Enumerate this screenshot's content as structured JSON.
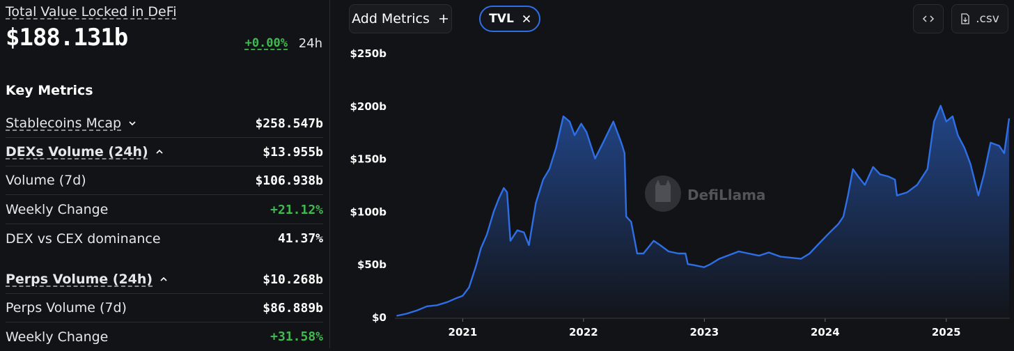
{
  "left_panel": {
    "tvl_title": "Total Value Locked in DeFi",
    "tvl_value": "$188.131b",
    "tvl_change": "+0.00%",
    "tvl_period": "24h",
    "section_title": "Key Metrics",
    "metrics": [
      {
        "label": "Stablecoins Mcap",
        "value": "$258.547b"
      },
      {
        "label": "DEXs Volume (24h)",
        "value": "$13.955b"
      },
      {
        "label": "Volume (7d)",
        "value": "$106.938b"
      },
      {
        "label": "Weekly Change",
        "value": "+21.12%"
      },
      {
        "label": "DEX vs CEX dominance",
        "value": "41.37%"
      },
      {
        "label": "Perps Volume (24h)",
        "value": "$10.268b"
      },
      {
        "label": "Perps Volume (7d)",
        "value": "$86.889b"
      },
      {
        "label": "Weekly Change",
        "value": "+31.58%"
      }
    ]
  },
  "toolbar": {
    "add_metrics_label": "Add Metrics",
    "tvl_chip_label": "TVL",
    "csv_label": ".csv"
  },
  "watermark": "DefiLlama",
  "colors": {
    "background": "#121316",
    "line": "#2f6fe6",
    "positive": "#3fb950"
  },
  "icons": [
    "plus-icon",
    "close-icon",
    "chevron-down-icon",
    "chevron-up-icon",
    "code-icon",
    "download-file-icon",
    "llama-logo-icon"
  ],
  "chart_data": {
    "type": "area",
    "series": [
      {
        "name": "TVL"
      }
    ],
    "y_ticks": [
      "$0",
      "$50b",
      "$100b",
      "$150b",
      "$200b",
      "$250b"
    ],
    "x_ticks": [
      "2021",
      "2022",
      "2023",
      "2024",
      "2025"
    ],
    "ylim": [
      0,
      250
    ],
    "y_unit": "$b",
    "grid": false,
    "points": [
      [
        "2020-06-15",
        1
      ],
      [
        "2020-07-15",
        3
      ],
      [
        "2020-08-15",
        6
      ],
      [
        "2020-09-15",
        10
      ],
      [
        "2020-10-15",
        11
      ],
      [
        "2020-11-15",
        14
      ],
      [
        "2020-12-15",
        18
      ],
      [
        "2021-01-01",
        20
      ],
      [
        "2021-01-20",
        28
      ],
      [
        "2021-02-10",
        48
      ],
      [
        "2021-02-25",
        65
      ],
      [
        "2021-03-15",
        78
      ],
      [
        "2021-04-05",
        100
      ],
      [
        "2021-04-20",
        112
      ],
      [
        "2021-05-05",
        122
      ],
      [
        "2021-05-15",
        118
      ],
      [
        "2021-05-25",
        72
      ],
      [
        "2021-06-15",
        82
      ],
      [
        "2021-07-05",
        80
      ],
      [
        "2021-07-20",
        68
      ],
      [
        "2021-08-10",
        108
      ],
      [
        "2021-09-01",
        130
      ],
      [
        "2021-09-20",
        140
      ],
      [
        "2021-10-10",
        160
      ],
      [
        "2021-11-01",
        190
      ],
      [
        "2021-11-20",
        185
      ],
      [
        "2021-12-05",
        172
      ],
      [
        "2021-12-25",
        183
      ],
      [
        "2022-01-10",
        175
      ],
      [
        "2022-02-05",
        150
      ],
      [
        "2022-03-01",
        165
      ],
      [
        "2022-04-01",
        185
      ],
      [
        "2022-04-25",
        165
      ],
      [
        "2022-05-05",
        155
      ],
      [
        "2022-05-10",
        95
      ],
      [
        "2022-05-25",
        90
      ],
      [
        "2022-06-12",
        60
      ],
      [
        "2022-07-01",
        60
      ],
      [
        "2022-08-01",
        72
      ],
      [
        "2022-08-20",
        68
      ],
      [
        "2022-09-15",
        62
      ],
      [
        "2022-10-15",
        60
      ],
      [
        "2022-11-05",
        60
      ],
      [
        "2022-11-12",
        50
      ],
      [
        "2022-12-01",
        49
      ],
      [
        "2022-12-31",
        47
      ],
      [
        "2023-01-20",
        50
      ],
      [
        "2023-02-15",
        55
      ],
      [
        "2023-04-15",
        62
      ],
      [
        "2023-05-15",
        60
      ],
      [
        "2023-06-15",
        58
      ],
      [
        "2023-07-15",
        61
      ],
      [
        "2023-08-20",
        57
      ],
      [
        "2023-09-20",
        56
      ],
      [
        "2023-10-20",
        55
      ],
      [
        "2023-11-15",
        60
      ],
      [
        "2023-12-15",
        70
      ],
      [
        "2024-01-15",
        80
      ],
      [
        "2024-02-10",
        88
      ],
      [
        "2024-02-25",
        95
      ],
      [
        "2024-03-10",
        115
      ],
      [
        "2024-03-25",
        140
      ],
      [
        "2024-04-10",
        133
      ],
      [
        "2024-04-30",
        125
      ],
      [
        "2024-05-25",
        142
      ],
      [
        "2024-06-15",
        135
      ],
      [
        "2024-07-10",
        133
      ],
      [
        "2024-07-30",
        130
      ],
      [
        "2024-08-05",
        115
      ],
      [
        "2024-09-05",
        118
      ],
      [
        "2024-10-05",
        125
      ],
      [
        "2024-11-05",
        140
      ],
      [
        "2024-11-25",
        185
      ],
      [
        "2024-12-15",
        200
      ],
      [
        "2025-01-01",
        185
      ],
      [
        "2025-01-20",
        190
      ],
      [
        "2025-02-05",
        172
      ],
      [
        "2025-02-25",
        160
      ],
      [
        "2025-03-15",
        145
      ],
      [
        "2025-04-08",
        115
      ],
      [
        "2025-04-25",
        135
      ],
      [
        "2025-05-15",
        165
      ],
      [
        "2025-06-10",
        162
      ],
      [
        "2025-06-25",
        155
      ],
      [
        "2025-07-10",
        188
      ]
    ]
  }
}
